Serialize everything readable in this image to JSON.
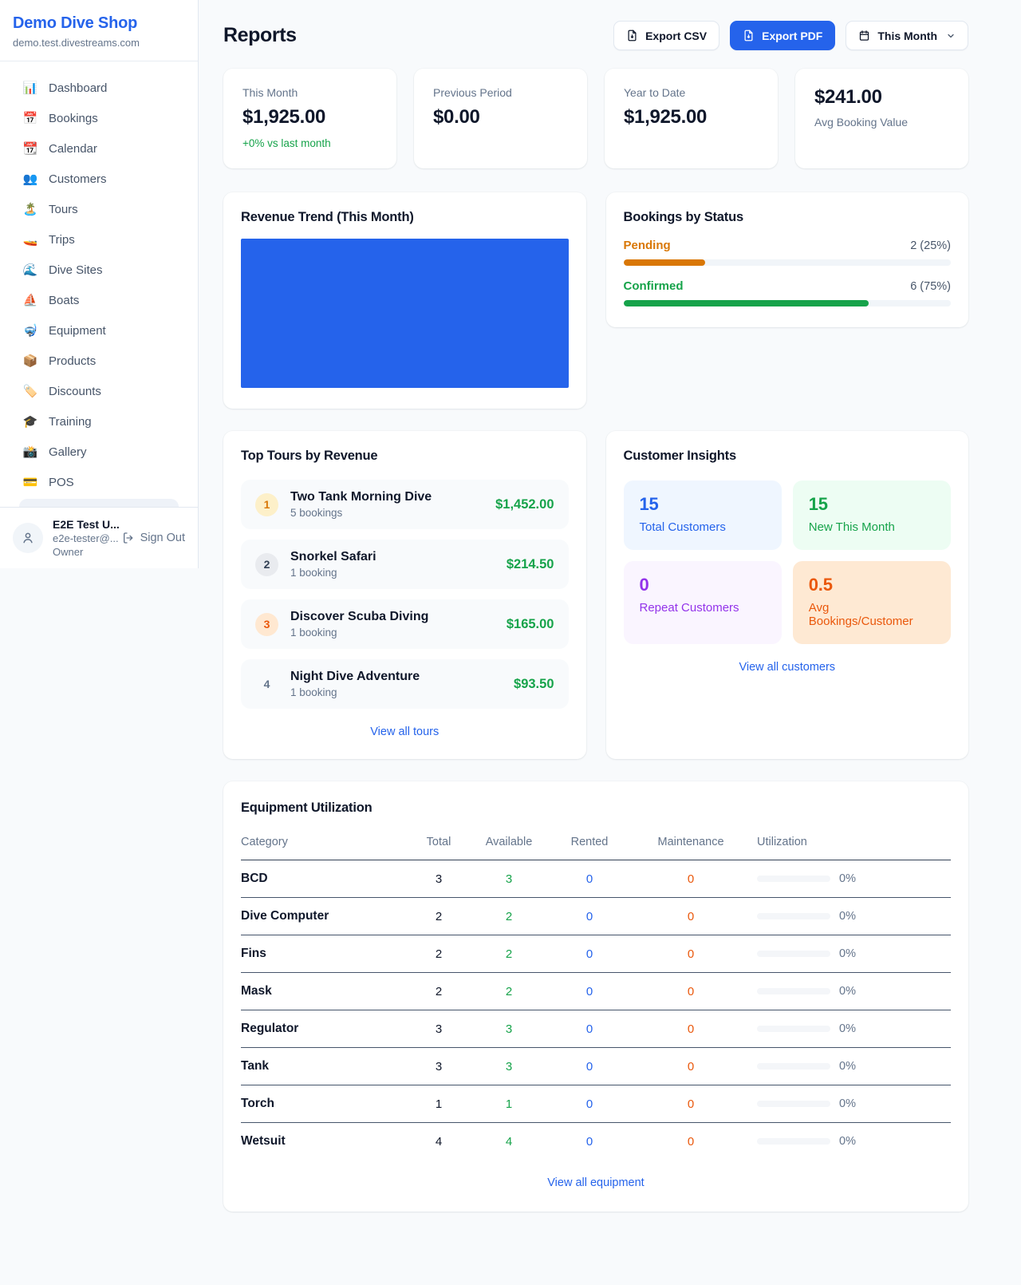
{
  "app": {
    "name": "Demo Dive Shop",
    "domain": "demo.test.divestreams.com"
  },
  "sidebar": {
    "items": [
      {
        "icon": "📊",
        "label": "Dashboard"
      },
      {
        "icon": "📅",
        "label": "Bookings"
      },
      {
        "icon": "📆",
        "label": "Calendar"
      },
      {
        "icon": "👥",
        "label": "Customers"
      },
      {
        "icon": "🏝️",
        "label": "Tours"
      },
      {
        "icon": "🚤",
        "label": "Trips"
      },
      {
        "icon": "🌊",
        "label": "Dive Sites"
      },
      {
        "icon": "⛵",
        "label": "Boats"
      },
      {
        "icon": "🤿",
        "label": "Equipment"
      },
      {
        "icon": "📦",
        "label": "Products"
      },
      {
        "icon": "🏷️",
        "label": "Discounts"
      },
      {
        "icon": "🎓",
        "label": "Training"
      },
      {
        "icon": "📸",
        "label": "Gallery"
      },
      {
        "icon": "💳",
        "label": "POS"
      }
    ],
    "user": {
      "name": "E2E Test U...",
      "email": "e2e-tester@...",
      "role": "Owner",
      "sign_out": "Sign Out"
    }
  },
  "header": {
    "title": "Reports",
    "export_csv": "Export CSV",
    "export_pdf": "Export PDF",
    "period": "This Month"
  },
  "stats": [
    {
      "label": "This Month",
      "value": "$1,925.00",
      "note": "+0% vs last month"
    },
    {
      "label": "Previous Period",
      "value": "$0.00"
    },
    {
      "label": "Year to Date",
      "value": "$1,925.00"
    },
    {
      "label": "Avg Booking Value",
      "value": "$241.00"
    }
  ],
  "revenue_trend": {
    "title": "Revenue Trend (This Month)",
    "chart_color": "#2563eb"
  },
  "bookings_by_status": {
    "title": "Bookings by Status",
    "rows": [
      {
        "label": "Pending",
        "count": "2 (25%)",
        "pct": 25,
        "color": "#d97706"
      },
      {
        "label": "Confirmed",
        "count": "6 (75%)",
        "pct": 75,
        "color": "#16a34a"
      }
    ]
  },
  "top_tours": {
    "title": "Top Tours by Revenue",
    "rows": [
      {
        "rank": "1",
        "name": "Two Tank Morning Dive",
        "bookings": "5 bookings",
        "amount": "$1,452.00"
      },
      {
        "rank": "2",
        "name": "Snorkel Safari",
        "bookings": "1 booking",
        "amount": "$214.50"
      },
      {
        "rank": "3",
        "name": "Discover Scuba Diving",
        "bookings": "1 booking",
        "amount": "$165.00"
      },
      {
        "rank": "4",
        "name": "Night Dive Adventure",
        "bookings": "1 booking",
        "amount": "$93.50"
      }
    ],
    "view_all": "View all tours"
  },
  "customer_insights": {
    "title": "Customer Insights",
    "tiles": [
      {
        "value": "15",
        "label": "Total Customers"
      },
      {
        "value": "15",
        "label": "New This Month"
      },
      {
        "value": "0",
        "label": "Repeat Customers"
      },
      {
        "value": "0.5",
        "label": "Avg Bookings/Customer"
      }
    ],
    "view_all": "View all customers"
  },
  "equipment": {
    "title": "Equipment Utilization",
    "headers": [
      "Category",
      "Total",
      "Available",
      "Rented",
      "Maintenance",
      "Utilization"
    ],
    "rows": [
      {
        "category": "BCD",
        "total": "3",
        "available": "3",
        "rented": "0",
        "maintenance": "0",
        "utilization": "0%"
      },
      {
        "category": "Dive Computer",
        "total": "2",
        "available": "2",
        "rented": "0",
        "maintenance": "0",
        "utilization": "0%"
      },
      {
        "category": "Fins",
        "total": "2",
        "available": "2",
        "rented": "0",
        "maintenance": "0",
        "utilization": "0%"
      },
      {
        "category": "Mask",
        "total": "2",
        "available": "2",
        "rented": "0",
        "maintenance": "0",
        "utilization": "0%"
      },
      {
        "category": "Regulator",
        "total": "3",
        "available": "3",
        "rented": "0",
        "maintenance": "0",
        "utilization": "0%"
      },
      {
        "category": "Tank",
        "total": "3",
        "available": "3",
        "rented": "0",
        "maintenance": "0",
        "utilization": "0%"
      },
      {
        "category": "Torch",
        "total": "1",
        "available": "1",
        "rented": "0",
        "maintenance": "0",
        "utilization": "0%"
      },
      {
        "category": "Wetsuit",
        "total": "4",
        "available": "4",
        "rented": "0",
        "maintenance": "0",
        "utilization": "0%"
      }
    ],
    "view_all": "View all equipment"
  },
  "colors": {
    "accent": "#2563eb",
    "positive": "#16a34a",
    "pending": "#d97706",
    "maintenance": "#ea580c"
  }
}
